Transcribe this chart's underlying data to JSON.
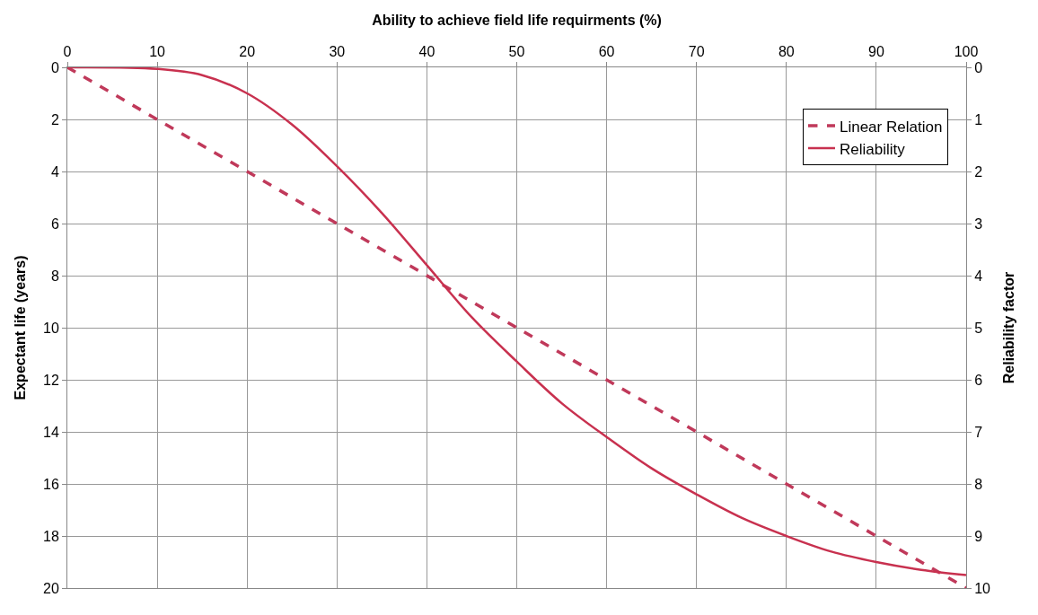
{
  "chart_data": {
    "type": "line",
    "xlabel": "Ability to achieve field life requirments (%)",
    "ylabel": "Expectant life (years)",
    "y2label": "Reliability factor",
    "xlim": [
      0,
      100
    ],
    "xticks": [
      0,
      10,
      20,
      30,
      40,
      50,
      60,
      70,
      80,
      90,
      100
    ],
    "ylim": [
      20,
      0
    ],
    "yticks": [
      0,
      2,
      4,
      6,
      8,
      10,
      12,
      14,
      16,
      18,
      20
    ],
    "y2lim": [
      10,
      0
    ],
    "y2ticks": [
      0,
      1,
      2,
      3,
      4,
      5,
      6,
      7,
      8,
      9,
      10
    ],
    "grid": true,
    "legend": "top right",
    "series": [
      {
        "name": "Linear Relation",
        "color": "#c0395a",
        "line_style": "dashed",
        "x": [
          0,
          100
        ],
        "values": [
          0,
          20
        ]
      },
      {
        "name": "Reliability",
        "color": "#c8314f",
        "line_style": "solid",
        "axis": "y2",
        "x": [
          0,
          10,
          15,
          20,
          25,
          30,
          35,
          40,
          45,
          50,
          55,
          60,
          65,
          70,
          75,
          80,
          85,
          90,
          95,
          100
        ],
        "values": [
          0,
          0.03,
          0.15,
          0.5,
          1.1,
          1.9,
          2.8,
          3.8,
          4.8,
          5.65,
          6.45,
          7.1,
          7.7,
          8.2,
          8.65,
          9.0,
          9.3,
          9.5,
          9.65,
          9.75
        ]
      }
    ]
  }
}
